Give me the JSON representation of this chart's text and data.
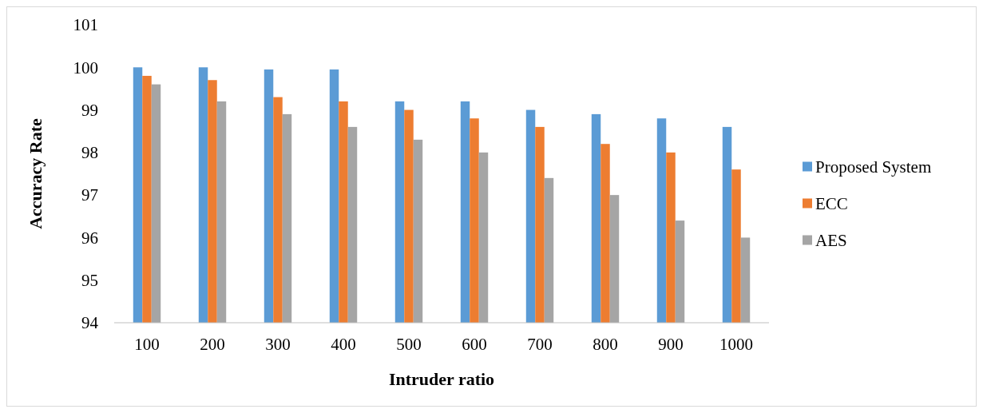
{
  "chart_data": {
    "type": "bar",
    "xlabel": "Intruder ratio",
    "ylabel": "Accuracy Rate",
    "categories": [
      "100",
      "200",
      "300",
      "400",
      "500",
      "600",
      "700",
      "800",
      "900",
      "1000"
    ],
    "series": [
      {
        "name": "Proposed System",
        "color": "#5b9bd5",
        "values": [
          100,
          100,
          99.95,
          99.95,
          99.2,
          99.2,
          99.0,
          98.9,
          98.8,
          98.6
        ]
      },
      {
        "name": "ECC",
        "color": "#ed7d31",
        "values": [
          99.8,
          99.7,
          99.3,
          99.2,
          99.0,
          98.8,
          98.6,
          98.2,
          98.0,
          97.6
        ]
      },
      {
        "name": "AES",
        "color": "#a5a5a5",
        "values": [
          99.6,
          99.2,
          98.9,
          98.6,
          98.3,
          98.0,
          97.4,
          97.0,
          96.4,
          96.0
        ]
      }
    ],
    "ylim": [
      94,
      101
    ],
    "yticks": [
      94,
      95,
      96,
      97,
      98,
      99,
      100,
      101
    ],
    "grid": false,
    "legend": "right"
  }
}
